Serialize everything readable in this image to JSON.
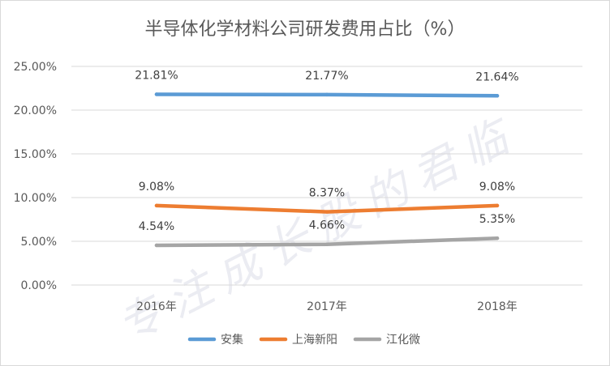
{
  "chart_data": {
    "type": "line",
    "title": "半导体化学材料公司研发费用占比（%）",
    "categories": [
      "2016年",
      "2017年",
      "2018年"
    ],
    "y_ticks": [
      "0.00%",
      "5.00%",
      "10.00%",
      "15.00%",
      "20.00%",
      "25.00%"
    ],
    "ylim": [
      0,
      25
    ],
    "grid": true,
    "legend_position": "bottom",
    "series": [
      {
        "name": "安集",
        "color": "#5b9bd5",
        "values": [
          21.81,
          21.77,
          21.64
        ],
        "labels": [
          "21.81%",
          "21.77%",
          "21.64%"
        ]
      },
      {
        "name": "上海新阳",
        "color": "#ed7d31",
        "values": [
          9.08,
          8.37,
          9.08
        ],
        "labels": [
          "9.08%",
          "8.37%",
          "9.08%"
        ]
      },
      {
        "name": "江化微",
        "color": "#a5a5a5",
        "values": [
          4.54,
          4.66,
          5.35
        ],
        "labels": [
          "4.54%",
          "4.66%",
          "5.35%"
        ]
      }
    ]
  },
  "watermark": "专注成长股的君临"
}
